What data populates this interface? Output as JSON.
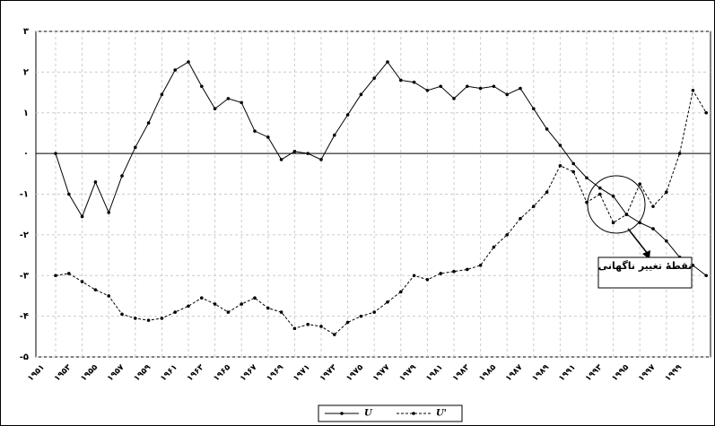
{
  "chart_data": {
    "type": "line",
    "categories": [
      "۱۹۵۱",
      null,
      "۱۹۵۳",
      null,
      "۱۹۵۵",
      null,
      "۱۹۵۷",
      null,
      "۱۹۵۹",
      null,
      "۱۹۶۱",
      null,
      "۱۹۶۳",
      null,
      "۱۹۶۵",
      null,
      "۱۹۶۷",
      null,
      "۱۹۶۹",
      null,
      "۱۹۷۱",
      null,
      "۱۹۷۳",
      null,
      "۱۹۷۵",
      null,
      "۱۹۷۷",
      null,
      "۱۹۷۹",
      null,
      "۱۹۸۱",
      null,
      "۱۹۸۳",
      null,
      "۱۹۸۵",
      null,
      "۱۹۸۷",
      null,
      "۱۹۸۹",
      null,
      "۱۹۹۱",
      null,
      "۱۹۹۳",
      null,
      "۱۹۹۵",
      null,
      "۱۹۹۷",
      null,
      "۱۹۹۹",
      null
    ],
    "series": [
      {
        "name": "U",
        "color": "#000000",
        "dash": false,
        "values": [
          0,
          -1,
          -1.55,
          -0.7,
          -1.45,
          -0.55,
          0.15,
          0.75,
          1.45,
          2.05,
          2.25,
          1.65,
          1.1,
          1.35,
          1.25,
          0.55,
          0.4,
          -0.15,
          0.05,
          0,
          -0.15,
          0.45,
          0.95,
          1.45,
          1.85,
          2.25,
          1.8,
          1.75,
          1.55,
          1.65,
          1.35,
          1.65,
          1.6,
          1.65,
          1.45,
          1.6,
          1.1,
          0.6,
          0.2,
          -0.25,
          -0.6,
          -0.85,
          -1.05,
          -1.5,
          -1.7,
          -1.85,
          -2.15,
          -2.55,
          -2.75,
          -3
        ]
      },
      {
        "name": "U'",
        "color": "#000000",
        "dash": true,
        "values": [
          -3,
          -2.95,
          -3.15,
          -3.35,
          -3.5,
          -3.95,
          -4.05,
          -4.1,
          -4.05,
          -3.9,
          -3.75,
          -3.55,
          -3.7,
          -3.9,
          -3.7,
          -3.55,
          -3.8,
          -3.9,
          -4.3,
          -4.2,
          -4.25,
          -4.45,
          -4.15,
          -4,
          -3.9,
          -3.65,
          -3.4,
          -3,
          -3.1,
          -2.95,
          -2.9,
          -2.85,
          -2.75,
          -2.3,
          -2,
          -1.6,
          -1.3,
          -0.95,
          -0.3,
          -0.45,
          -1.2,
          -1,
          -1.7,
          -1.5,
          -0.75,
          -1.3,
          -0.95,
          0,
          1.55,
          1
        ]
      }
    ],
    "ylim": [
      -5,
      3
    ],
    "yticks": [
      {
        "value": 3,
        "label": "۳"
      },
      {
        "value": 2,
        "label": "۲"
      },
      {
        "value": 1,
        "label": "۱"
      },
      {
        "value": 0,
        "label": "۰"
      },
      {
        "value": -1,
        "label": "-۱"
      },
      {
        "value": -2,
        "label": "-۲"
      },
      {
        "value": -3,
        "label": "-۳"
      },
      {
        "value": -4,
        "label": "-۴"
      },
      {
        "value": -5,
        "label": "-۵"
      }
    ],
    "grid": true,
    "legend": "bottom",
    "annotation": "نقطهٔ تغییر ناگهانی"
  }
}
